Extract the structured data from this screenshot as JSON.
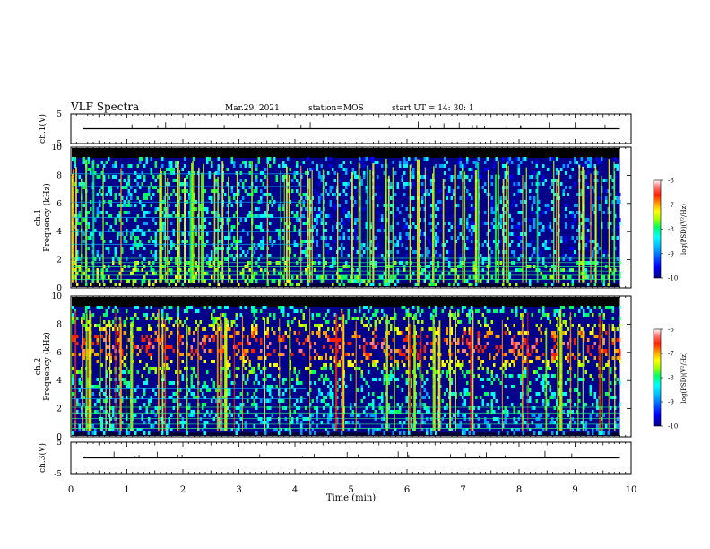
{
  "header": {
    "title": "VLF Spectra",
    "date": "Mar.29, 2021",
    "station": "station=MOS",
    "start": "start  UT =   14: 30: 1"
  },
  "chart_data": [
    {
      "type": "line",
      "name": "ch1-voltage",
      "ylabel": "ch.1(V)",
      "ylim": [
        -5,
        5
      ],
      "y_ticks": [
        "5",
        "-5"
      ],
      "x": [
        0,
        10
      ],
      "series": [
        {
          "values": [
            0,
            0
          ]
        }
      ]
    },
    {
      "type": "heatmap",
      "name": "ch1-spectrogram",
      "ylabel": "ch.1\nFrequency (kHz)",
      "ylim": [
        0,
        10
      ],
      "y_ticks": [
        "0",
        "2",
        "4",
        "6",
        "8",
        "10"
      ],
      "xlim": [
        0,
        10
      ],
      "colorbar": {
        "label": "log(PSD)(V²/Hz)",
        "range": [
          -10,
          -6
        ],
        "ticks": [
          "-6",
          "-7",
          "-8",
          "-9",
          "-10"
        ]
      },
      "description_levels": {
        "bands_kHz": [
          [
            0.3,
            2.0
          ],
          [
            2.0,
            9.3
          ]
        ],
        "band_level_log_psd": [
          -8.5,
          -9.5
        ]
      },
      "record_end_min": 9.8
    },
    {
      "type": "heatmap",
      "name": "ch2-spectrogram",
      "ylabel": "ch.2\nFrequency (kHz)",
      "ylim": [
        0,
        10
      ],
      "y_ticks": [
        "0",
        "2",
        "4",
        "6",
        "8",
        "10"
      ],
      "xlim": [
        0,
        10
      ],
      "colorbar": {
        "label": "log(PSD)(V²/Hz)",
        "range": [
          -10,
          -6
        ],
        "ticks": [
          "-6",
          "-7",
          "-8",
          "-9",
          "-10"
        ]
      },
      "description_levels": {
        "bands_kHz": [
          [
            5.0,
            8.0
          ],
          [
            2.0,
            9.5
          ]
        ],
        "band_level_log_psd": [
          -6.5,
          -8.0
        ]
      },
      "record_end_min": 9.8
    },
    {
      "type": "line",
      "name": "ch3-voltage",
      "ylabel": "ch.3(V)",
      "ylim": [
        -5,
        5
      ],
      "y_ticks": [
        "5",
        "-5"
      ],
      "x": [
        0,
        10
      ],
      "series": [
        {
          "values": [
            0,
            0
          ]
        }
      ]
    }
  ],
  "x_axis": {
    "label": "Time (min)",
    "ticks": [
      "0",
      "1",
      "2",
      "3",
      "4",
      "5",
      "6",
      "7",
      "8",
      "9",
      "10"
    ],
    "range": [
      0,
      10
    ]
  },
  "colors": {
    "background": "#ffffff",
    "axes": "#000000",
    "colormap": [
      "#00007f",
      "#0000ff",
      "#00a0ff",
      "#00ffff",
      "#00ff60",
      "#a0ff00",
      "#ffff00",
      "#ffa000",
      "#ff2000",
      "#ff8080",
      "#ffffff"
    ]
  }
}
